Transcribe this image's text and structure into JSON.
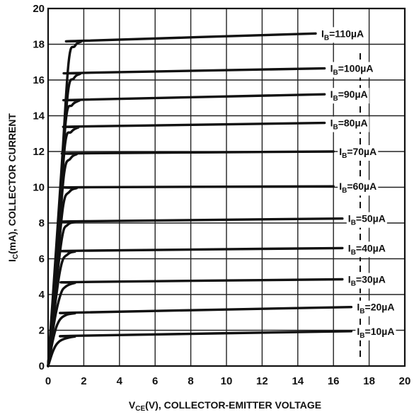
{
  "chart_data": {
    "type": "line",
    "title": "",
    "xlabel": {
      "main": "V",
      "sub": "CE",
      "rest": "(V), COLLECTOR-EMITTER VOLTAGE"
    },
    "ylabel": {
      "main": "I",
      "sub": "C",
      "rest": "(mA), COLLECTOR CURRENT"
    },
    "xlim": [
      0,
      20
    ],
    "ylim": [
      0,
      20
    ],
    "xticks": [
      "0",
      "2",
      "4",
      "6",
      "8",
      "10",
      "12",
      "14",
      "16",
      "18",
      "20"
    ],
    "yticks": [
      "0",
      "2",
      "4",
      "6",
      "8",
      "10",
      "12",
      "14",
      "16",
      "18",
      "20"
    ],
    "grid": true,
    "series": [
      {
        "name": "IB=10µA",
        "label_main": "I",
        "label_sub": "B",
        "label_rest": "=10µA",
        "x": [
          0,
          0.3,
          0.6,
          1.0,
          1.5,
          2.0,
          17
        ],
        "y": [
          0,
          0.9,
          1.35,
          1.55,
          1.65,
          1.7,
          1.95
        ]
      },
      {
        "name": "IB=20µA",
        "label_main": "I",
        "label_sub": "B",
        "label_rest": "=20µA",
        "x": [
          0,
          0.3,
          0.6,
          1.0,
          1.5,
          2.0,
          17
        ],
        "y": [
          0,
          1.6,
          2.5,
          2.85,
          2.95,
          3.0,
          3.3
        ]
      },
      {
        "name": "IB=30µA",
        "label_main": "I",
        "label_sub": "B",
        "label_rest": "=30µA",
        "x": [
          0,
          0.35,
          0.7,
          1.0,
          1.5,
          2.0,
          16.5
        ],
        "y": [
          0,
          2.5,
          4.0,
          4.45,
          4.65,
          4.7,
          4.85
        ]
      },
      {
        "name": "IB=40µA",
        "label_main": "I",
        "label_sub": "B",
        "label_rest": "=40µA",
        "x": [
          0,
          0.4,
          0.75,
          1.1,
          1.5,
          2.0,
          16.5
        ],
        "y": [
          0,
          3.5,
          5.7,
          6.25,
          6.4,
          6.45,
          6.6
        ]
      },
      {
        "name": "IB=50µA",
        "label_main": "I",
        "label_sub": "B",
        "label_rest": "=50µA",
        "x": [
          0,
          0.45,
          0.8,
          1.1,
          1.5,
          2.0,
          16.5
        ],
        "y": [
          0,
          4.5,
          7.3,
          7.9,
          8.05,
          8.1,
          8.25
        ]
      },
      {
        "name": "IB=60µA",
        "label_main": "I",
        "label_sub": "B",
        "label_rest": "=60µA",
        "x": [
          0,
          0.5,
          0.85,
          1.2,
          1.6,
          2.0,
          16
        ],
        "y": [
          0,
          5.5,
          9.0,
          9.75,
          9.95,
          10.0,
          10.05
        ]
      },
      {
        "name": "IB=70µA",
        "label_main": "I",
        "label_sub": "B",
        "label_rest": "=70µA",
        "x": [
          0,
          0.55,
          0.9,
          1.25,
          1.6,
          2.0,
          16
        ],
        "y": [
          0,
          6.5,
          10.8,
          11.6,
          11.85,
          11.9,
          12.0
        ]
      },
      {
        "name": "IB=80µA",
        "label_main": "I",
        "label_sub": "B",
        "label_rest": "=80µA",
        "x": [
          0,
          0.6,
          0.95,
          1.3,
          1.7,
          2.0,
          15.5
        ],
        "y": [
          0,
          7.6,
          12.4,
          13.1,
          13.35,
          13.4,
          13.6
        ]
      },
      {
        "name": "IB=90µA",
        "label_main": "I",
        "label_sub": "B",
        "label_rest": "=90µA",
        "x": [
          0,
          0.65,
          1.0,
          1.35,
          1.75,
          2.0,
          15.5
        ],
        "y": [
          0,
          8.5,
          13.8,
          14.6,
          14.85,
          14.9,
          15.2
        ]
      },
      {
        "name": "IB=100µA",
        "label_main": "I",
        "label_sub": "B",
        "label_rest": "=100µA",
        "x": [
          0,
          0.7,
          1.1,
          1.45,
          1.8,
          2.0,
          15.5
        ],
        "y": [
          0,
          9.5,
          15.2,
          16.1,
          16.35,
          16.4,
          16.65
        ]
      },
      {
        "name": "IB=110µA",
        "label_main": "I",
        "label_sub": "B",
        "label_rest": "=110µA",
        "x": [
          0,
          0.75,
          1.15,
          1.5,
          1.85,
          2.1,
          15
        ],
        "y": [
          0,
          11.0,
          17.0,
          17.9,
          18.15,
          18.2,
          18.6
        ]
      }
    ],
    "dashed_line": {
      "x": 17.5,
      "y_range": [
        0.5,
        17.5
      ]
    }
  }
}
